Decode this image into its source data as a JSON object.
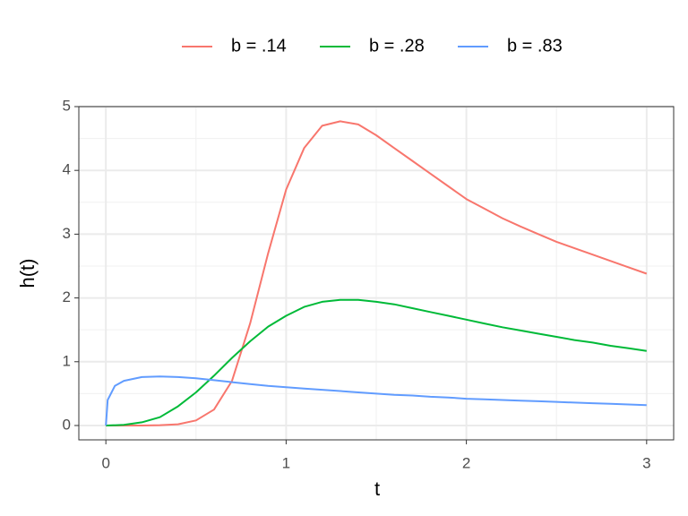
{
  "chart_data": {
    "type": "line",
    "x_label": "t",
    "y_label": "h(t)",
    "xlim": [
      -0.15,
      3.15
    ],
    "ylim": [
      -0.225,
      5.0
    ],
    "xticks": [
      0,
      1,
      2,
      3
    ],
    "yticks": [
      0,
      1,
      2,
      3,
      4,
      5
    ],
    "xminorticks": [
      0.5,
      1.5,
      2.5
    ],
    "yminorticks": [
      0.5,
      1.5,
      2.5,
      3.5,
      4.5
    ],
    "grid": true,
    "legend_position": "top",
    "series": [
      {
        "name": "b = .14",
        "color": "#F8766D",
        "x": [
          0,
          0.1,
          0.2,
          0.3,
          0.4,
          0.5,
          0.6,
          0.7,
          0.8,
          0.9,
          1.0,
          1.1,
          1.2,
          1.3,
          1.4,
          1.5,
          1.6,
          1.7,
          1.8,
          1.9,
          2.0,
          2.1,
          2.2,
          2.3,
          2.4,
          2.5,
          2.6,
          2.7,
          2.8,
          2.9,
          3.0
        ],
        "values": [
          0,
          0,
          0,
          0.005,
          0.02,
          0.08,
          0.25,
          0.7,
          1.6,
          2.7,
          3.7,
          4.35,
          4.7,
          4.77,
          4.72,
          4.55,
          4.35,
          4.15,
          3.95,
          3.75,
          3.55,
          3.4,
          3.25,
          3.12,
          3.0,
          2.88,
          2.78,
          2.68,
          2.58,
          2.48,
          2.38
        ]
      },
      {
        "name": "b = .28",
        "color": "#00BA38",
        "x": [
          0,
          0.1,
          0.2,
          0.3,
          0.4,
          0.5,
          0.6,
          0.7,
          0.8,
          0.9,
          1.0,
          1.1,
          1.2,
          1.3,
          1.4,
          1.5,
          1.6,
          1.7,
          1.8,
          1.9,
          2.0,
          2.1,
          2.2,
          2.3,
          2.4,
          2.5,
          2.6,
          2.7,
          2.8,
          2.9,
          3.0
        ],
        "values": [
          0,
          0.01,
          0.05,
          0.13,
          0.3,
          0.52,
          0.78,
          1.06,
          1.32,
          1.55,
          1.72,
          1.86,
          1.94,
          1.97,
          1.97,
          1.94,
          1.9,
          1.84,
          1.78,
          1.72,
          1.66,
          1.6,
          1.54,
          1.49,
          1.44,
          1.39,
          1.34,
          1.3,
          1.25,
          1.21,
          1.17
        ]
      },
      {
        "name": "b = .83",
        "color": "#619CFF",
        "x": [
          0,
          0.01,
          0.05,
          0.1,
          0.2,
          0.3,
          0.4,
          0.5,
          0.6,
          0.7,
          0.8,
          0.9,
          1.0,
          1.1,
          1.2,
          1.3,
          1.4,
          1.5,
          1.6,
          1.7,
          1.8,
          1.9,
          2.0,
          2.1,
          2.2,
          2.3,
          2.4,
          2.5,
          2.6,
          2.7,
          2.8,
          2.9,
          3.0
        ],
        "values": [
          0,
          0.4,
          0.62,
          0.7,
          0.76,
          0.77,
          0.76,
          0.74,
          0.71,
          0.68,
          0.65,
          0.62,
          0.6,
          0.58,
          0.56,
          0.54,
          0.52,
          0.5,
          0.48,
          0.47,
          0.45,
          0.44,
          0.42,
          0.41,
          0.4,
          0.39,
          0.38,
          0.37,
          0.36,
          0.35,
          0.34,
          0.33,
          0.32
        ]
      }
    ]
  }
}
